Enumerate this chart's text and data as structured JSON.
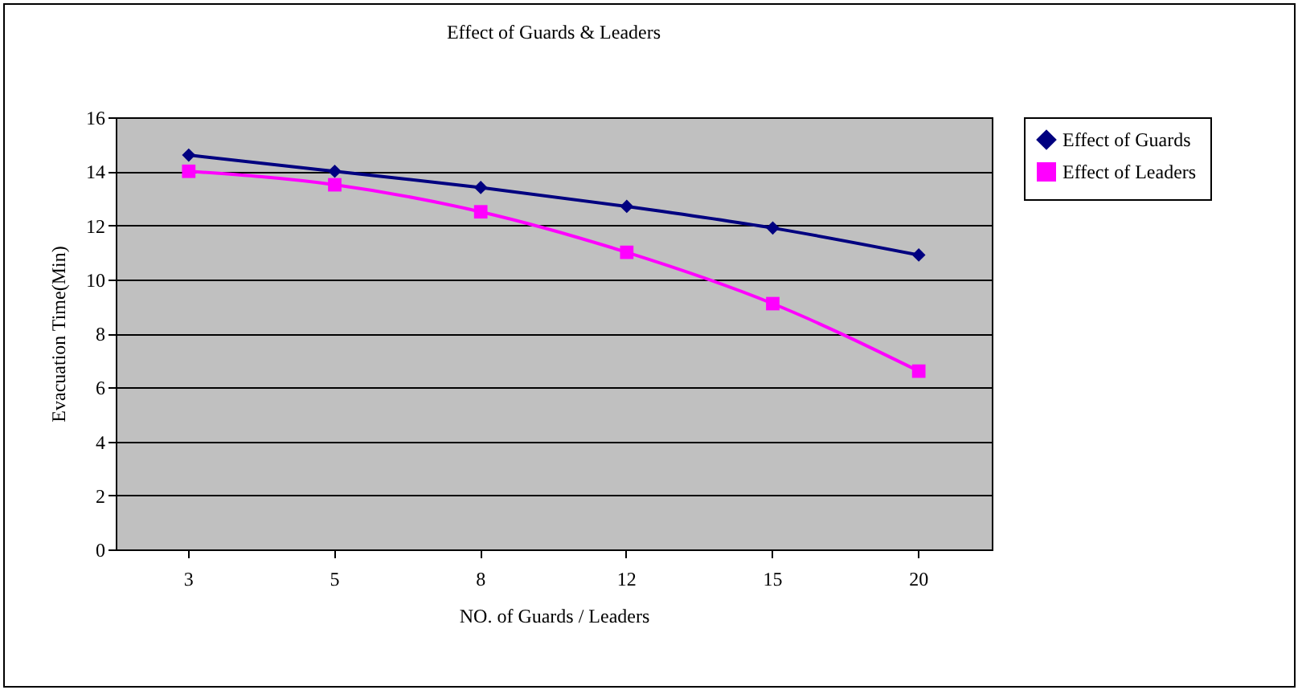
{
  "chart_data": {
    "type": "line",
    "title": "Effect of Guards & Leaders",
    "xlabel": "NO. of Guards / Leaders",
    "ylabel": "Evacuation Time(Min)",
    "categories": [
      "3",
      "5",
      "8",
      "12",
      "15",
      "20"
    ],
    "series": [
      {
        "name": "Effect of Guards",
        "color": "#000080",
        "marker": "diamond",
        "values": [
          14.6,
          14.0,
          13.4,
          12.7,
          11.9,
          10.9
        ]
      },
      {
        "name": "Effect of Leaders",
        "color": "#ff00ff",
        "marker": "square",
        "values": [
          14.0,
          13.5,
          12.5,
          11.0,
          9.1,
          6.6
        ]
      }
    ],
    "ylim": [
      0,
      16
    ],
    "yticks": [
      0,
      2,
      4,
      6,
      8,
      10,
      12,
      14,
      16
    ],
    "grid": "y",
    "legend": "right",
    "line_style": "solid"
  }
}
